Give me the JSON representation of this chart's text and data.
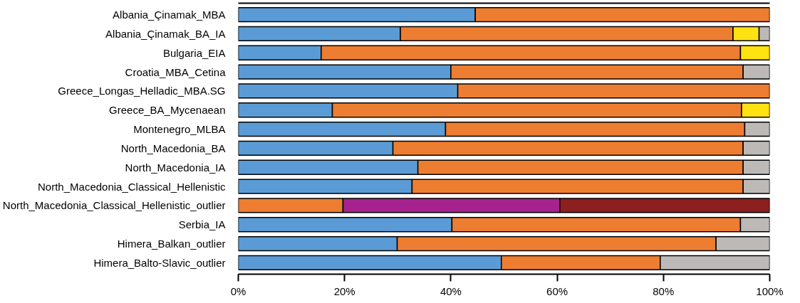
{
  "chart_data": {
    "type": "bar",
    "orientation": "horizontal",
    "stacked": true,
    "categories": [
      "Albania_Çinamak_MBA",
      "Albania_Çinamak_BA_IA",
      "Bulgaria_EIA",
      "Croatia_MBA_Cetina",
      "Greece_Longas_Helladic_MBA.SG",
      "Greece_BA_Mycenaean",
      "Montenegro_MLBA",
      "North_Macedonia_BA",
      "North_Macedonia_IA",
      "North_Macedonia_Classical_Hellenistic",
      "North_Macedonia_Classical_Hellenistic_outlier",
      "Serbia_IA",
      "Himera_Balkan_outlier",
      "Himera_Balto-Slavic_outlier"
    ],
    "series": [
      {
        "color": "#5b9bd5",
        "values": [
          44.6,
          30.5,
          15.6,
          40.0,
          41.3,
          17.7,
          39.0,
          29.1,
          33.8,
          32.7,
          0,
          40.2,
          29.9,
          49.5
        ]
      },
      {
        "color": "#ed7d31",
        "values": [
          55.4,
          62.6,
          78.9,
          55.0,
          58.7,
          77.0,
          56.3,
          65.9,
          61.2,
          62.3,
          19.7,
          54.3,
          60.0,
          29.9
        ]
      },
      {
        "color": "#ffe211",
        "values": [
          0,
          4.9,
          5.5,
          0,
          0,
          5.3,
          0,
          0,
          0,
          0,
          0,
          0,
          0,
          0
        ]
      },
      {
        "color": "#bdb9b7",
        "values": [
          0,
          2.0,
          0,
          5.0,
          0,
          0,
          4.7,
          5.0,
          5.0,
          5.0,
          0,
          5.5,
          10.1,
          20.6
        ]
      },
      {
        "color": "#a6228f",
        "values": [
          0,
          0,
          0,
          0,
          0,
          0,
          0,
          0,
          0,
          0,
          40.8,
          0,
          0,
          0
        ]
      },
      {
        "color": "#8e1f1f",
        "values": [
          0,
          0,
          0,
          0,
          0,
          0,
          0,
          0,
          0,
          0,
          39.5,
          0,
          0,
          0
        ]
      }
    ],
    "xlim": [
      0,
      100
    ],
    "xticks": [
      {
        "value": 0,
        "label": "0%"
      },
      {
        "value": 20,
        "label": "20%"
      },
      {
        "value": 40,
        "label": "40%"
      },
      {
        "value": 60,
        "label": "60%"
      },
      {
        "value": 80,
        "label": "80%"
      },
      {
        "value": 100,
        "label": "100%"
      }
    ],
    "grid": false
  }
}
